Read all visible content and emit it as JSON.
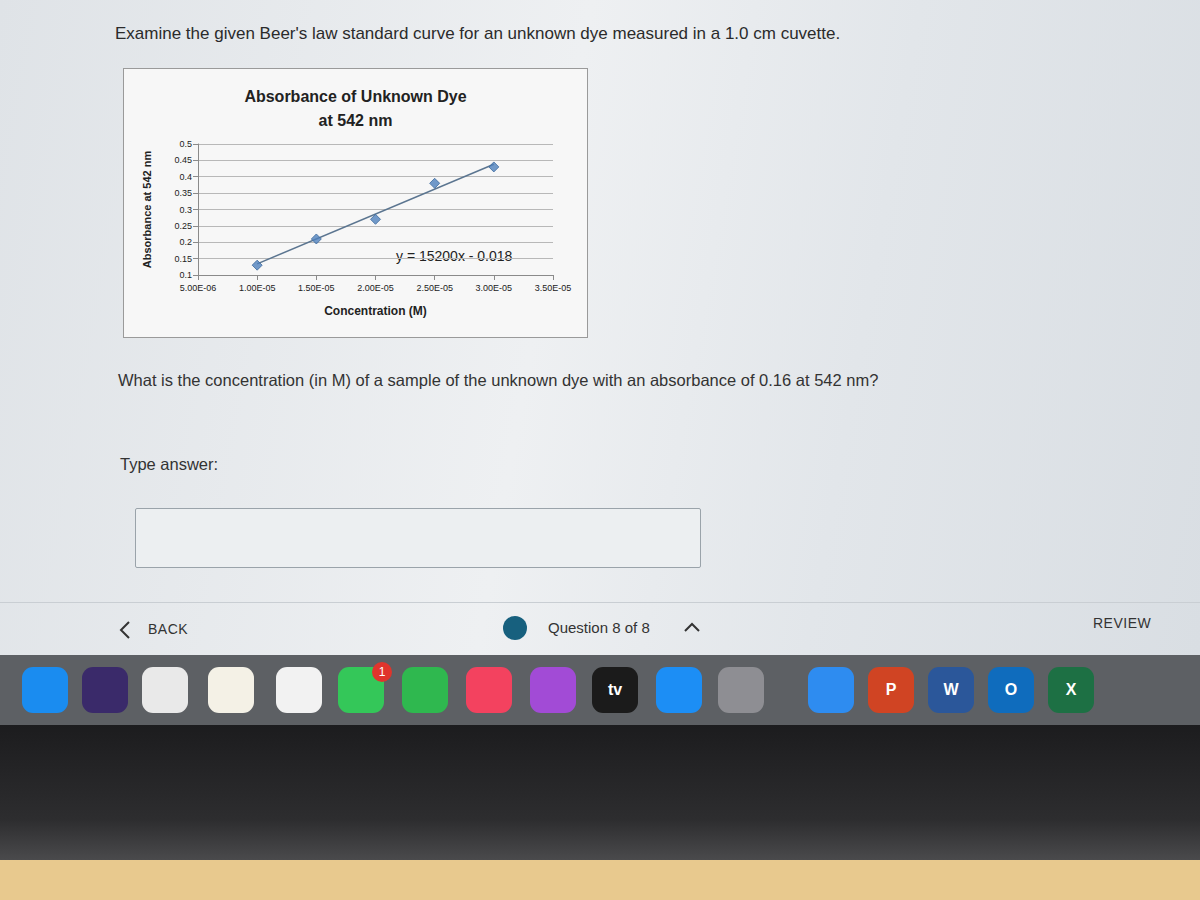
{
  "page": {
    "header": "Examine the given Beer's law standard curve for an unknown dye measured in a 1.0 cm cuvette.",
    "question": "What is the concentration (in M) of a sample of the unknown dye with an absorbance of 0.16 at 542 nm?",
    "answer_prompt": "Type answer:",
    "back": "BACK",
    "progress": "Question 8 of 8",
    "review": "REVIEW",
    "dock_labels": [
      "tv",
      "P",
      "W",
      "O",
      "X"
    ],
    "badge": "1"
  },
  "chart_data": {
    "type": "scatter",
    "title": "Absorbance of Unknown Dye\nat 542 nm",
    "x_label": "Concentration (M)",
    "y_label": "Absorbance at 542 nm",
    "x": [
      1e-05,
      1.5e-05,
      2e-05,
      2.5e-05,
      3e-05
    ],
    "values": [
      0.13,
      0.21,
      0.27,
      0.38,
      0.43
    ],
    "color": "#4f81bd",
    "marker": "diamond",
    "trendline": {
      "label": "y = 15200x - 0.018",
      "slope": 15200,
      "intercept": -0.018,
      "color": "#5b7590"
    },
    "xlim": [
      5e-06,
      3.5e-05
    ],
    "xticks": [
      {
        "value": 5e-06,
        "label": "5.00E-06"
      },
      {
        "value": 1e-05,
        "label": "1.00E-05"
      },
      {
        "value": 1.5e-05,
        "label": "1.50E-05"
      },
      {
        "value": 2e-05,
        "label": "2.00E-05"
      },
      {
        "value": 2.5e-05,
        "label": "2.50E-05"
      },
      {
        "value": 3e-05,
        "label": "3.00E-05"
      },
      {
        "value": 3.5e-05,
        "label": "3.50E-05"
      }
    ],
    "ylim": [
      0.1,
      0.5
    ],
    "yticks": [
      0.1,
      0.15,
      0.2,
      0.25,
      0.3,
      0.35,
      0.4,
      0.45,
      0.5
    ],
    "grid": true
  }
}
